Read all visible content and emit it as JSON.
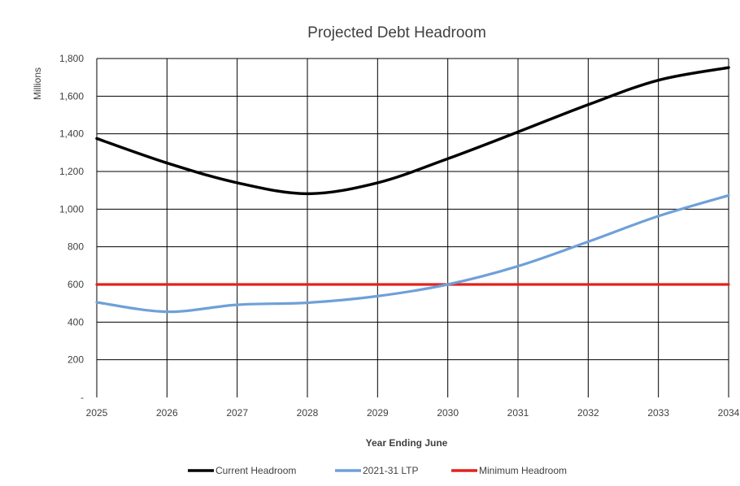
{
  "chart_data": {
    "type": "line",
    "title": "Projected Debt Headroom",
    "xlabel": "Year Ending June",
    "ylabel": "Millions",
    "x": [
      "2025",
      "2026",
      "2027",
      "2028",
      "2029",
      "2030",
      "2031",
      "2032",
      "2033",
      "2034"
    ],
    "y_ticks": [
      0,
      200,
      400,
      600,
      800,
      1000,
      1200,
      1400,
      1600,
      1800
    ],
    "y_tick_labels": [
      "-",
      "200",
      "400",
      "600",
      "800",
      "1,000",
      "1,200",
      "1,400",
      "1,600",
      "1,800"
    ],
    "ylim": [
      0,
      1800
    ],
    "grid": true,
    "legend_position": "bottom",
    "series": [
      {
        "name": "Current Headroom",
        "color": "#000000",
        "values": [
          1375,
          1245,
          1140,
          1082,
          1140,
          1268,
          1410,
          1555,
          1685,
          1752
        ]
      },
      {
        "name": "2021-31 LTP",
        "color": "#6fa0d8",
        "values": [
          505,
          455,
          492,
          503,
          538,
          600,
          697,
          827,
          963,
          1073
        ]
      },
      {
        "name": "Minimum Headroom",
        "color": "#e2221c",
        "values": [
          600,
          600,
          600,
          600,
          600,
          600,
          600,
          600,
          600,
          600
        ]
      }
    ]
  }
}
